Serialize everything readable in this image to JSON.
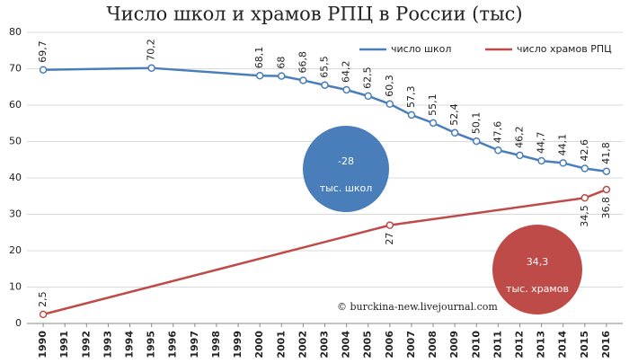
{
  "chart_data": {
    "type": "line",
    "title": "Число школ и храмов РПЦ в России (тыс)",
    "xlim": [
      1989.25,
      2016.75
    ],
    "xticks": [
      1990,
      1991,
      1992,
      1993,
      1994,
      1995,
      1996,
      1997,
      1998,
      1999,
      2000,
      2001,
      2002,
      2003,
      2004,
      2005,
      2006,
      2007,
      2008,
      2009,
      2010,
      2011,
      2012,
      2013,
      2014,
      2015,
      2016
    ],
    "ylim": [
      0,
      80
    ],
    "yticks": [
      0,
      10,
      20,
      30,
      40,
      50,
      60,
      70,
      80
    ],
    "grid": true,
    "legend": "top-right",
    "series": [
      {
        "name": "число школ",
        "color": "#4a7ebb",
        "x": [
          1990,
          1995,
          2000,
          2001,
          2002,
          2003,
          2004,
          2005,
          2006,
          2007,
          2008,
          2009,
          2010,
          2011,
          2012,
          2013,
          2014,
          2015,
          2016
        ],
        "values": [
          69.7,
          70.2,
          68.1,
          68,
          66.8,
          65.5,
          64.2,
          62.5,
          60.3,
          57.3,
          55.1,
          52.4,
          50.1,
          47.6,
          46.2,
          44.7,
          44.1,
          42.6,
          41.8
        ],
        "value_labels": [
          "69,7",
          "70,2",
          "68,1",
          "68",
          "66,8",
          "65,5",
          "64,2",
          "62,5",
          "60,3",
          "57,3",
          "55,1",
          "52,4",
          "50,1",
          "47,6",
          "46,2",
          "44,7",
          "44,1",
          "42,6",
          "41,8"
        ]
      },
      {
        "name": "число храмов РПЦ",
        "color": "#be4b48",
        "x": [
          1990,
          2006,
          2015,
          2016
        ],
        "values": [
          2.5,
          27,
          34.5,
          36.8
        ],
        "value_labels": [
          "2,5",
          "27",
          "34,5",
          "36,8"
        ]
      }
    ],
    "annotations": [
      {
        "text": "-28",
        "subtext": "тыс. школ",
        "color": "#4a7ebb"
      },
      {
        "text": "34,3",
        "subtext": "тыс. храмов",
        "color": "#be4b48"
      }
    ],
    "watermark": "© burckina-new.livejournal.com"
  }
}
